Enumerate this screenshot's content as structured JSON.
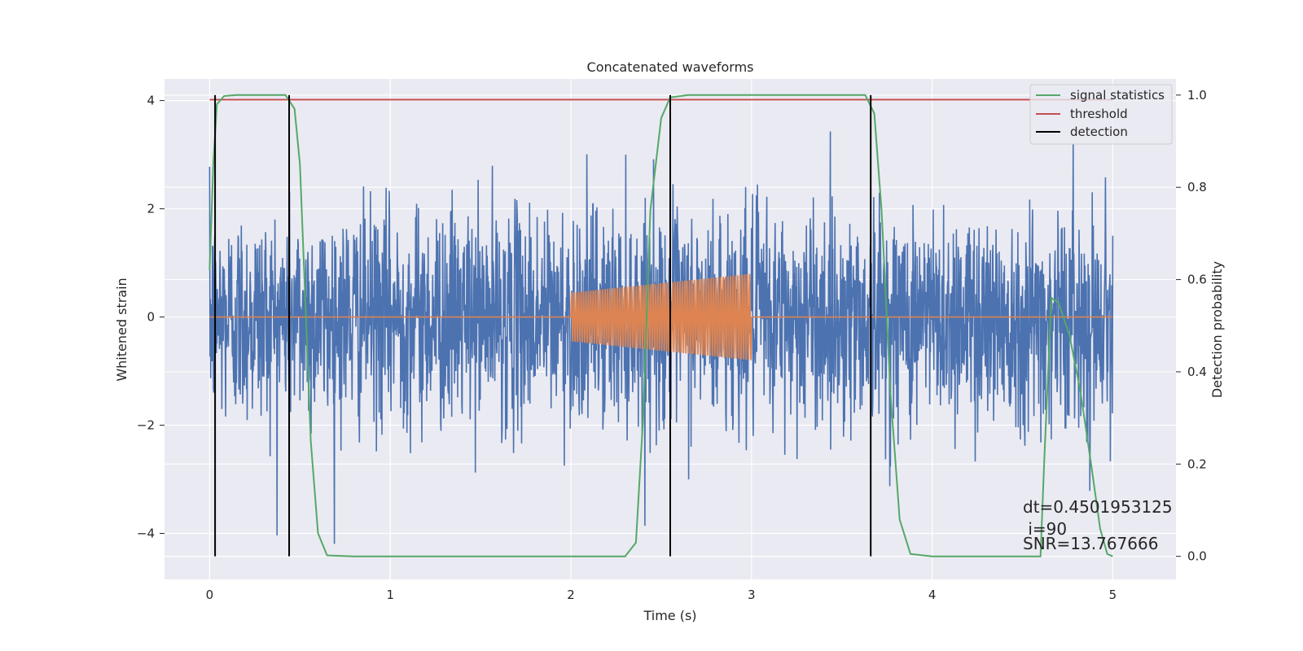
{
  "chart_data": {
    "type": "line",
    "title": "Concatenated waveforms",
    "xlabel": "Time (s)",
    "ylabel_left": "Whitened strain",
    "ylabel_right": "Detection probability",
    "xlim": [
      -0.25,
      5.35
    ],
    "ylim_left": [
      -4.85,
      4.4
    ],
    "ylim_right": [
      -0.05,
      1.035
    ],
    "x_ticks": [
      0,
      1,
      2,
      3,
      4,
      5
    ],
    "y_ticks_left": [
      -4,
      -2,
      0,
      2,
      4
    ],
    "y_ticks_left_labels": [
      "−4",
      "−2",
      "0",
      "2",
      "4"
    ],
    "y_ticks_right": [
      0.0,
      0.2,
      0.4,
      0.6,
      0.8,
      1.0
    ],
    "y_ticks_right_labels": [
      "0.0",
      "0.2",
      "0.4",
      "0.6",
      "0.8",
      "1.0"
    ],
    "grid": true,
    "legend_position": "top-right",
    "series": [
      {
        "name": "",
        "axis": "left",
        "kind": "noise",
        "color": "#4c72b0",
        "x_range": [
          0,
          5
        ],
        "typical_amplitude": 1.0,
        "peak_range": [
          -4.4,
          4.0
        ]
      },
      {
        "name": "",
        "axis": "left",
        "kind": "chirp",
        "color": "#dd8452",
        "x_range": [
          0,
          5
        ],
        "signal_window": [
          2.0,
          3.0
        ],
        "amplitude_start": 0.45,
        "amplitude_end": 0.8,
        "cycles": 75,
        "baseline": 0
      },
      {
        "name": "signal statistics",
        "axis": "right",
        "color": "#55a868",
        "points": [
          [
            0.0,
            0.62
          ],
          [
            0.02,
            0.85
          ],
          [
            0.04,
            0.98
          ],
          [
            0.08,
            0.998
          ],
          [
            0.15,
            1.0
          ],
          [
            0.42,
            1.0
          ],
          [
            0.47,
            0.97
          ],
          [
            0.5,
            0.85
          ],
          [
            0.53,
            0.55
          ],
          [
            0.56,
            0.25
          ],
          [
            0.6,
            0.05
          ],
          [
            0.65,
            0.002
          ],
          [
            0.8,
            0.0
          ],
          [
            2.3,
            0.0
          ],
          [
            2.36,
            0.03
          ],
          [
            2.4,
            0.3
          ],
          [
            2.44,
            0.75
          ],
          [
            2.5,
            0.95
          ],
          [
            2.55,
            0.995
          ],
          [
            2.65,
            1.0
          ],
          [
            3.63,
            1.0
          ],
          [
            3.68,
            0.96
          ],
          [
            3.72,
            0.75
          ],
          [
            3.77,
            0.35
          ],
          [
            3.82,
            0.08
          ],
          [
            3.88,
            0.005
          ],
          [
            4.0,
            0.0
          ],
          [
            4.6,
            0.0
          ],
          [
            4.62,
            0.2
          ],
          [
            4.66,
            0.56
          ],
          [
            4.7,
            0.55
          ],
          [
            4.76,
            0.48
          ],
          [
            4.82,
            0.36
          ],
          [
            4.88,
            0.2
          ],
          [
            4.93,
            0.06
          ],
          [
            4.97,
            0.005
          ],
          [
            5.0,
            0.0
          ]
        ]
      },
      {
        "name": "threshold",
        "axis": "right",
        "color": "#c44e52",
        "value": 0.99,
        "x_range": [
          0,
          5
        ]
      },
      {
        "name": "detection",
        "axis": "right",
        "color": "#000000",
        "x": [
          0.03,
          0.44,
          2.55,
          3.66
        ],
        "y_range": [
          0,
          1
        ]
      }
    ],
    "annotations": [
      "dt=0.4501953125",
      " i=90",
      "SNR=13.767666"
    ]
  },
  "colors": {
    "axes_background": "#eaeaf2",
    "grid": "#ffffff",
    "noise": "#4c72b0",
    "chirp": "#dd8452",
    "signal_statistics": "#55a868",
    "threshold": "#c44e52",
    "detection": "#000000"
  }
}
